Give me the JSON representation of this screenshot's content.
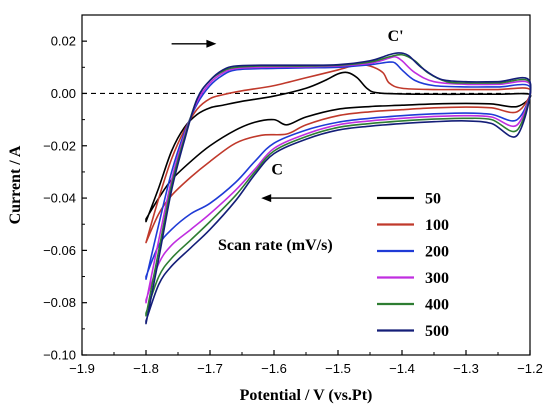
{
  "chart_data": {
    "type": "line",
    "title": "",
    "xlabel": "Potential / V (vs.Pt)",
    "ylabel": "Current / A",
    "xlim": [
      -1.9,
      -1.2
    ],
    "ylim": [
      -0.1,
      0.03
    ],
    "xticks": [
      -1.9,
      -1.8,
      -1.7,
      -1.6,
      -1.5,
      -1.4,
      -1.3,
      -1.2
    ],
    "xtick_labels": [
      "−1.9",
      "−1.8",
      "−1.7",
      "−1.6",
      "−1.5",
      "−1.4",
      "−1.3",
      "−1.2"
    ],
    "yticks": [
      0.02,
      0.0,
      -0.02,
      -0.04,
      -0.06,
      -0.08,
      -0.1
    ],
    "ytick_labels": [
      "0.02",
      "0.00",
      "−0.02",
      "−0.04",
      "−0.06",
      "−0.08",
      "−0.10"
    ],
    "grid": false,
    "zero_line": {
      "y": 0.0,
      "style": "dashed"
    },
    "legend": {
      "title": "Scan rate (mV/s)",
      "position": "bottom-right"
    },
    "annotations": [
      {
        "text": "C'",
        "x": -1.41,
        "y": 0.02
      },
      {
        "text": "C",
        "x": -1.595,
        "y": -0.031
      }
    ],
    "arrows": [
      {
        "direction": "right",
        "from": [
          -1.76,
          0.019
        ],
        "to": [
          -1.69,
          0.019
        ]
      },
      {
        "direction": "left",
        "from": [
          -1.51,
          -0.04
        ],
        "to": [
          -1.62,
          -0.04
        ]
      }
    ],
    "series": [
      {
        "name": "50",
        "color": "#000000",
        "forward": [
          [
            -1.8,
            -0.049
          ],
          [
            -1.78,
            -0.036
          ],
          [
            -1.76,
            -0.022
          ],
          [
            -1.74,
            -0.013
          ],
          [
            -1.72,
            -0.008
          ],
          [
            -1.7,
            -0.0055
          ],
          [
            -1.68,
            -0.0045
          ],
          [
            -1.65,
            -0.003
          ],
          [
            -1.6,
            -0.001
          ],
          [
            -1.55,
            0.002
          ],
          [
            -1.52,
            0.005
          ],
          [
            -1.5,
            0.0075
          ],
          [
            -1.485,
            0.008
          ],
          [
            -1.47,
            0.006
          ],
          [
            -1.455,
            0.002
          ],
          [
            -1.44,
            0.0003
          ],
          [
            -1.4,
            -0.0002
          ],
          [
            -1.35,
            -0.0003
          ],
          [
            -1.3,
            -0.0003
          ],
          [
            -1.25,
            -0.0003
          ],
          [
            -1.2,
            -0.0004
          ]
        ],
        "reverse": [
          [
            -1.2,
            -0.009
          ],
          [
            -1.22,
            -0.005
          ],
          [
            -1.26,
            -0.004
          ],
          [
            -1.3,
            -0.0038
          ],
          [
            -1.35,
            -0.004
          ],
          [
            -1.4,
            -0.0045
          ],
          [
            -1.45,
            -0.005
          ],
          [
            -1.5,
            -0.006
          ],
          [
            -1.55,
            -0.009
          ],
          [
            -1.58,
            -0.012
          ],
          [
            -1.6,
            -0.01
          ],
          [
            -1.63,
            -0.011
          ],
          [
            -1.66,
            -0.014
          ],
          [
            -1.7,
            -0.02
          ],
          [
            -1.73,
            -0.026
          ],
          [
            -1.76,
            -0.033
          ],
          [
            -1.78,
            -0.04
          ],
          [
            -1.8,
            -0.048
          ]
        ]
      },
      {
        "name": "100",
        "color": "#c0392b",
        "forward": [
          [
            -1.8,
            -0.057
          ],
          [
            -1.78,
            -0.04
          ],
          [
            -1.76,
            -0.025
          ],
          [
            -1.74,
            -0.014
          ],
          [
            -1.72,
            -0.006
          ],
          [
            -1.7,
            -0.002
          ],
          [
            -1.68,
            -0.0005
          ],
          [
            -1.65,
            0.001
          ],
          [
            -1.6,
            0.003
          ],
          [
            -1.55,
            0.006
          ],
          [
            -1.5,
            0.009
          ],
          [
            -1.47,
            0.011
          ],
          [
            -1.45,
            0.0105
          ],
          [
            -1.43,
            0.008
          ],
          [
            -1.42,
            0.004
          ],
          [
            -1.4,
            0.002
          ],
          [
            -1.35,
            0.0015
          ],
          [
            -1.3,
            0.0015
          ],
          [
            -1.25,
            0.0015
          ],
          [
            -1.2,
            0.0015
          ]
        ],
        "reverse": [
          [
            -1.2,
            -0.011
          ],
          [
            -1.22,
            -0.007
          ],
          [
            -1.26,
            -0.0055
          ],
          [
            -1.3,
            -0.0052
          ],
          [
            -1.35,
            -0.0055
          ],
          [
            -1.4,
            -0.0062
          ],
          [
            -1.45,
            -0.007
          ],
          [
            -1.5,
            -0.0085
          ],
          [
            -1.55,
            -0.012
          ],
          [
            -1.58,
            -0.0155
          ],
          [
            -1.62,
            -0.016
          ],
          [
            -1.66,
            -0.019
          ],
          [
            -1.7,
            -0.026
          ],
          [
            -1.73,
            -0.032
          ],
          [
            -1.76,
            -0.039
          ],
          [
            -1.78,
            -0.046
          ],
          [
            -1.8,
            -0.057
          ]
        ]
      },
      {
        "name": "200",
        "color": "#1f3bd6",
        "forward": [
          [
            -1.8,
            -0.071
          ],
          [
            -1.78,
            -0.05
          ],
          [
            -1.76,
            -0.03
          ],
          [
            -1.74,
            -0.015
          ],
          [
            -1.72,
            -0.004
          ],
          [
            -1.7,
            0.003
          ],
          [
            -1.68,
            0.007
          ],
          [
            -1.66,
            0.009
          ],
          [
            -1.62,
            0.0095
          ],
          [
            -1.55,
            0.0098
          ],
          [
            -1.5,
            0.01
          ],
          [
            -1.45,
            0.011
          ],
          [
            -1.42,
            0.012
          ],
          [
            -1.41,
            0.0115
          ],
          [
            -1.4,
            0.009
          ],
          [
            -1.38,
            0.005
          ],
          [
            -1.35,
            0.003
          ],
          [
            -1.3,
            0.0025
          ],
          [
            -1.25,
            0.0025
          ],
          [
            -1.2,
            0.0025
          ]
        ],
        "reverse": [
          [
            -1.2,
            -0.016
          ],
          [
            -1.22,
            -0.01
          ],
          [
            -1.26,
            -0.008
          ],
          [
            -1.3,
            -0.0075
          ],
          [
            -1.35,
            -0.0078
          ],
          [
            -1.4,
            -0.0085
          ],
          [
            -1.45,
            -0.0095
          ],
          [
            -1.5,
            -0.011
          ],
          [
            -1.55,
            -0.014
          ],
          [
            -1.6,
            -0.019
          ],
          [
            -1.63,
            -0.026
          ],
          [
            -1.66,
            -0.034
          ],
          [
            -1.7,
            -0.042
          ],
          [
            -1.73,
            -0.046
          ],
          [
            -1.76,
            -0.052
          ],
          [
            -1.78,
            -0.058
          ],
          [
            -1.8,
            -0.07
          ]
        ]
      },
      {
        "name": "300",
        "color": "#c02ee0",
        "forward": [
          [
            -1.8,
            -0.08
          ],
          [
            -1.78,
            -0.056
          ],
          [
            -1.76,
            -0.033
          ],
          [
            -1.74,
            -0.016
          ],
          [
            -1.72,
            -0.003
          ],
          [
            -1.7,
            0.004
          ],
          [
            -1.68,
            0.0078
          ],
          [
            -1.66,
            0.0095
          ],
          [
            -1.62,
            0.01
          ],
          [
            -1.55,
            0.0102
          ],
          [
            -1.5,
            0.0105
          ],
          [
            -1.45,
            0.0115
          ],
          [
            -1.42,
            0.0135
          ],
          [
            -1.41,
            0.014
          ],
          [
            -1.4,
            0.0125
          ],
          [
            -1.38,
            0.008
          ],
          [
            -1.35,
            0.0045
          ],
          [
            -1.3,
            0.0035
          ],
          [
            -1.25,
            0.0035
          ],
          [
            -1.2,
            0.0035
          ]
        ],
        "reverse": [
          [
            -1.2,
            -0.018
          ],
          [
            -1.22,
            -0.012
          ],
          [
            -1.26,
            -0.009
          ],
          [
            -1.3,
            -0.0085
          ],
          [
            -1.35,
            -0.0088
          ],
          [
            -1.4,
            -0.0095
          ],
          [
            -1.45,
            -0.0105
          ],
          [
            -1.5,
            -0.012
          ],
          [
            -1.55,
            -0.0155
          ],
          [
            -1.6,
            -0.021
          ],
          [
            -1.63,
            -0.029
          ],
          [
            -1.66,
            -0.037
          ],
          [
            -1.7,
            -0.046
          ],
          [
            -1.73,
            -0.052
          ],
          [
            -1.76,
            -0.058
          ],
          [
            -1.78,
            -0.065
          ],
          [
            -1.8,
            -0.079
          ]
        ]
      },
      {
        "name": "400",
        "color": "#2e7d32",
        "forward": [
          [
            -1.8,
            -0.085
          ],
          [
            -1.78,
            -0.06
          ],
          [
            -1.76,
            -0.035
          ],
          [
            -1.74,
            -0.017
          ],
          [
            -1.72,
            -0.002
          ],
          [
            -1.7,
            0.005
          ],
          [
            -1.68,
            0.0085
          ],
          [
            -1.66,
            0.01
          ],
          [
            -1.62,
            0.0105
          ],
          [
            -1.55,
            0.0105
          ],
          [
            -1.5,
            0.0108
          ],
          [
            -1.45,
            0.012
          ],
          [
            -1.42,
            0.014
          ],
          [
            -1.4,
            0.0148
          ],
          [
            -1.38,
            0.0125
          ],
          [
            -1.36,
            0.008
          ],
          [
            -1.33,
            0.0045
          ],
          [
            -1.3,
            0.004
          ],
          [
            -1.25,
            0.004
          ],
          [
            -1.2,
            0.004
          ]
        ],
        "reverse": [
          [
            -1.2,
            -0.021
          ],
          [
            -1.22,
            -0.014
          ],
          [
            -1.26,
            -0.01
          ],
          [
            -1.3,
            -0.0095
          ],
          [
            -1.35,
            -0.0098
          ],
          [
            -1.4,
            -0.0105
          ],
          [
            -1.45,
            -0.0115
          ],
          [
            -1.5,
            -0.013
          ],
          [
            -1.55,
            -0.0165
          ],
          [
            -1.6,
            -0.022
          ],
          [
            -1.63,
            -0.03
          ],
          [
            -1.66,
            -0.039
          ],
          [
            -1.7,
            -0.049
          ],
          [
            -1.73,
            -0.056
          ],
          [
            -1.76,
            -0.063
          ],
          [
            -1.78,
            -0.07
          ],
          [
            -1.8,
            -0.084
          ]
        ]
      },
      {
        "name": "500",
        "color": "#141e78",
        "forward": [
          [
            -1.8,
            -0.088
          ],
          [
            -1.78,
            -0.063
          ],
          [
            -1.76,
            -0.037
          ],
          [
            -1.74,
            -0.018
          ],
          [
            -1.72,
            -0.002
          ],
          [
            -1.7,
            0.005
          ],
          [
            -1.68,
            0.009
          ],
          [
            -1.66,
            0.0105
          ],
          [
            -1.62,
            0.0108
          ],
          [
            -1.55,
            0.0108
          ],
          [
            -1.5,
            0.011
          ],
          [
            -1.45,
            0.0125
          ],
          [
            -1.42,
            0.0148
          ],
          [
            -1.405,
            0.0155
          ],
          [
            -1.39,
            0.0145
          ],
          [
            -1.37,
            0.01
          ],
          [
            -1.34,
            0.0055
          ],
          [
            -1.3,
            0.0045
          ],
          [
            -1.25,
            0.0045
          ],
          [
            -1.2,
            0.0045
          ]
        ],
        "reverse": [
          [
            -1.2,
            -0.025
          ],
          [
            -1.22,
            -0.016
          ],
          [
            -1.26,
            -0.0115
          ],
          [
            -1.3,
            -0.0105
          ],
          [
            -1.35,
            -0.0108
          ],
          [
            -1.4,
            -0.0115
          ],
          [
            -1.45,
            -0.0125
          ],
          [
            -1.5,
            -0.014
          ],
          [
            -1.55,
            -0.0175
          ],
          [
            -1.6,
            -0.023
          ],
          [
            -1.63,
            -0.031
          ],
          [
            -1.66,
            -0.041
          ],
          [
            -1.7,
            -0.052
          ],
          [
            -1.73,
            -0.059
          ],
          [
            -1.76,
            -0.066
          ],
          [
            -1.78,
            -0.073
          ],
          [
            -1.8,
            -0.087
          ]
        ]
      }
    ]
  }
}
